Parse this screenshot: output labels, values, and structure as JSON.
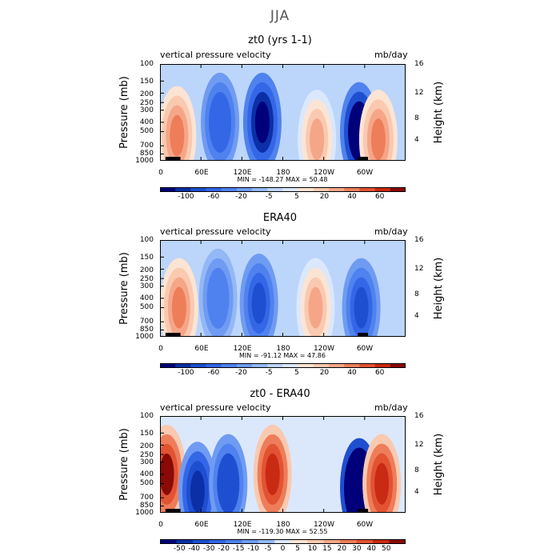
{
  "figure_title": "JJA",
  "panels": [
    {
      "title": "zt0 (yrs 1-1)",
      "left_label": "vertical pressure velocity",
      "right_label": "mb/day",
      "minmax_text": "MIN = -148.27   MAX =  50.48",
      "colorbar_labels": [
        "-100",
        "-60",
        "-20",
        "-5",
        "5",
        "20",
        "40",
        "60"
      ]
    },
    {
      "title": "ERA40",
      "left_label": "vertical pressure velocity",
      "right_label": "mb/day",
      "minmax_text": "MIN = -91.12   MAX =  47.86",
      "colorbar_labels": [
        "-100",
        "-60",
        "-20",
        "-5",
        "5",
        "20",
        "40",
        "60"
      ]
    },
    {
      "title": "zt0 - ERA40",
      "left_label": "vertical pressure velocity",
      "right_label": "mb/day",
      "minmax_text": "MIN = -119.30   MAX =  52.55",
      "colorbar_labels": [
        "-50",
        "-40",
        "-30",
        "-20",
        "-15",
        "-10",
        "-5",
        "0",
        "5",
        "10",
        "15",
        "20",
        "30",
        "40",
        "50"
      ]
    }
  ],
  "axes": {
    "ylabel": "Pressure (mb)",
    "y2label": "Height (km)",
    "pressure_ticks": [
      "100",
      "150",
      "200",
      "250",
      "300",
      "400",
      "500",
      "700",
      "850",
      "1000"
    ],
    "height_ticks": [
      "16",
      "12",
      "8",
      "4"
    ],
    "x_ticks": [
      "0",
      "60E",
      "120E",
      "180",
      "120W",
      "60W"
    ]
  },
  "chart_data": [
    {
      "type": "heatmap",
      "title": "zt0 (yrs 1-1)",
      "variable": "vertical pressure velocity",
      "units": "mb/day",
      "x": [
        0,
        60,
        120,
        180,
        240,
        300
      ],
      "x_tick_labels": [
        "0",
        "60E",
        "120E",
        "180",
        "120W",
        "60W"
      ],
      "y_pressure": [
        100,
        150,
        200,
        250,
        300,
        400,
        500,
        700,
        850,
        1000
      ],
      "y_height_km": [
        16,
        12,
        8,
        4
      ],
      "min": -148.27,
      "max": 50.48,
      "levels": [
        -120,
        -100,
        -80,
        -60,
        -40,
        -20,
        -10,
        -5,
        5,
        10,
        20,
        30,
        40,
        50,
        60,
        70
      ],
      "colors": [
        "#00007a",
        "#0c2fa8",
        "#1f4fd1",
        "#3467e6",
        "#4f82ee",
        "#6f9bf2",
        "#93b8f6",
        "#bcd5fa",
        "#dbe8fc",
        "#fce4d4",
        "#f9c9b0",
        "#f5a688",
        "#ee7d5a",
        "#e25332",
        "#c92a14",
        "#8a0a05"
      ],
      "features": [
        {
          "lon": 25,
          "p": 550,
          "value": 40
        },
        {
          "lon": 88,
          "p": 400,
          "value": -60
        },
        {
          "lon": 150,
          "p": 400,
          "value": -120
        },
        {
          "lon": 230,
          "p": 600,
          "value": 35
        },
        {
          "lon": 292,
          "p": 500,
          "value": -140
        },
        {
          "lon": 320,
          "p": 600,
          "value": 40
        }
      ]
    },
    {
      "type": "heatmap",
      "title": "ERA40",
      "variable": "vertical pressure velocity",
      "units": "mb/day",
      "x": [
        0,
        60,
        120,
        180,
        240,
        300
      ],
      "x_tick_labels": [
        "0",
        "60E",
        "120E",
        "180",
        "120W",
        "60W"
      ],
      "y_pressure": [
        100,
        150,
        200,
        250,
        300,
        400,
        500,
        700,
        850,
        1000
      ],
      "y_height_km": [
        16,
        12,
        8,
        4
      ],
      "min": -91.12,
      "max": 47.86,
      "levels": [
        -120,
        -100,
        -80,
        -60,
        -40,
        -20,
        -10,
        -5,
        5,
        10,
        20,
        30,
        40,
        50,
        60,
        70
      ],
      "colors": [
        "#00007a",
        "#0c2fa8",
        "#1f4fd1",
        "#3467e6",
        "#4f82ee",
        "#6f9bf2",
        "#93b8f6",
        "#bcd5fa",
        "#dbe8fc",
        "#fce4d4",
        "#f9c9b0",
        "#f5a688",
        "#ee7d5a",
        "#e25332",
        "#c92a14",
        "#8a0a05"
      ],
      "features": [
        {
          "lon": 28,
          "p": 500,
          "value": 45
        },
        {
          "lon": 85,
          "p": 400,
          "value": -40
        },
        {
          "lon": 145,
          "p": 450,
          "value": -80
        },
        {
          "lon": 228,
          "p": 500,
          "value": 30
        },
        {
          "lon": 295,
          "p": 500,
          "value": -70
        }
      ]
    },
    {
      "type": "heatmap",
      "title": "zt0 - ERA40",
      "variable": "vertical pressure velocity",
      "units": "mb/day",
      "x": [
        0,
        60,
        120,
        180,
        240,
        300
      ],
      "x_tick_labels": [
        "0",
        "60E",
        "120E",
        "180",
        "120W",
        "60W"
      ],
      "y_pressure": [
        100,
        150,
        200,
        250,
        300,
        400,
        500,
        700,
        850,
        1000
      ],
      "y_height_km": [
        16,
        12,
        8,
        4
      ],
      "min": -119.3,
      "max": 52.55,
      "levels": [
        -50,
        -40,
        -30,
        -20,
        -15,
        -10,
        -5,
        0,
        5,
        10,
        15,
        20,
        30,
        40,
        50
      ],
      "colors": [
        "#00007a",
        "#0c2fa8",
        "#1f4fd1",
        "#3467e6",
        "#4f82ee",
        "#6f9bf2",
        "#93b8f6",
        "#dbe8fc",
        "#fce4d4",
        "#f9c9b0",
        "#f5a688",
        "#ee7d5a",
        "#e25332",
        "#c92a14",
        "#8a0a05"
      ],
      "features": [
        {
          "lon": 10,
          "p": 400,
          "value": 50
        },
        {
          "lon": 55,
          "p": 600,
          "value": -40
        },
        {
          "lon": 100,
          "p": 500,
          "value": -30
        },
        {
          "lon": 165,
          "p": 400,
          "value": 40
        },
        {
          "lon": 292,
          "p": 550,
          "value": -110
        },
        {
          "lon": 325,
          "p": 500,
          "value": 40
        }
      ]
    }
  ]
}
